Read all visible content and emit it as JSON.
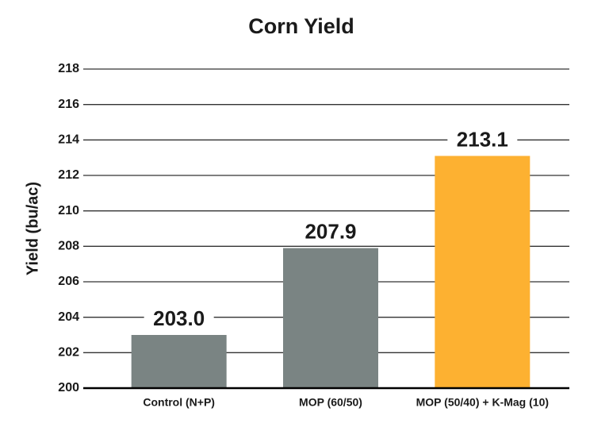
{
  "chart_data": {
    "type": "bar",
    "title": "Corn Yield",
    "y_label": "Yield (bu/ac)",
    "categories": [
      "Control (N+P)",
      "MOP (60/50)",
      "MOP (50/40) + K-Mag (10)"
    ],
    "values": [
      203.0,
      207.9,
      213.1
    ],
    "value_labels": [
      "203.0",
      "207.9",
      "213.1"
    ],
    "colors": [
      "#7a8483",
      "#7a8483",
      "#fdb131"
    ],
    "ylim": [
      200,
      218
    ],
    "yticks": [
      200,
      202,
      204,
      206,
      208,
      210,
      212,
      214,
      216,
      218
    ],
    "grid": true
  }
}
